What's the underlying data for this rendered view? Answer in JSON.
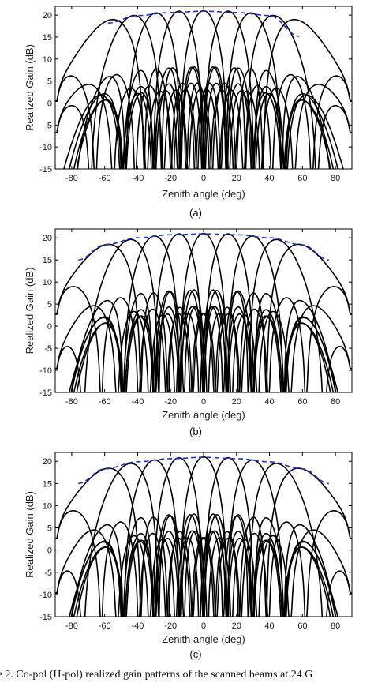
{
  "caption": "re 2. Co-pol (H-pol) realized gain patterns of the scanned beams at 24 G",
  "chart_data": [
    {
      "type": "line",
      "sublabel": "(a)",
      "xlabel": "Zenith angle (deg)",
      "ylabel": "Realized Gain (dB)",
      "xlim": [
        -90,
        90
      ],
      "ylim": [
        -15,
        22
      ],
      "xticks": [
        -80,
        -60,
        -40,
        -20,
        0,
        20,
        40,
        60,
        80
      ],
      "yticks": [
        -15,
        -10,
        -5,
        0,
        5,
        10,
        15,
        20
      ],
      "xtick_labels": [
        "-80",
        "-60",
        "-40",
        "-20",
        "0",
        "20",
        "40",
        "60",
        "80"
      ],
      "ytick_labels": [
        "-15",
        "-10",
        "-5",
        "0",
        "5",
        "10",
        "15",
        "20"
      ],
      "beam_color": "#000000",
      "envelope_color": "#1f2fcf",
      "beam_peak_angles": [
        -57,
        -43,
        -29,
        -15,
        0,
        15,
        29,
        43,
        57
      ],
      "beam_peak_gains": [
        18.9,
        19.9,
        20.5,
        20.9,
        21.0,
        20.9,
        20.5,
        19.9,
        18.9
      ],
      "envelope": {
        "x": [
          -58,
          -40,
          -20,
          0,
          20,
          40,
          58
        ],
        "y": [
          18.2,
          19.9,
          20.6,
          20.9,
          20.6,
          19.9,
          15.2
        ]
      }
    },
    {
      "type": "line",
      "sublabel": "(b)",
      "xlabel": "Zenith angle (deg)",
      "ylabel": "Realized Gain (dB)",
      "xlim": [
        -90,
        90
      ],
      "ylim": [
        -15,
        22
      ],
      "xticks": [
        -80,
        -60,
        -40,
        -20,
        0,
        20,
        40,
        60,
        80
      ],
      "yticks": [
        -15,
        -10,
        -5,
        0,
        5,
        10,
        15,
        20
      ],
      "xtick_labels": [
        "-80",
        "-60",
        "-40",
        "-20",
        "0",
        "20",
        "40",
        "60",
        "80"
      ],
      "ytick_labels": [
        "-15",
        "-10",
        "-5",
        "0",
        "5",
        "10",
        "15",
        "20"
      ],
      "beam_color": "#000000",
      "envelope_color": "#1f2fcf",
      "beam_peak_angles": [
        -60,
        -45,
        -30,
        -15,
        0,
        15,
        30,
        45,
        60
      ],
      "beam_peak_gains": [
        18.4,
        19.6,
        20.4,
        20.9,
        21.0,
        20.9,
        20.4,
        19.6,
        18.4
      ],
      "envelope": {
        "x": [
          -76,
          -60,
          -40,
          -20,
          0,
          20,
          40,
          60,
          76
        ],
        "y": [
          15.0,
          18.4,
          20.0,
          20.7,
          20.9,
          20.7,
          20.0,
          18.4,
          15.0
        ]
      }
    },
    {
      "type": "line",
      "sublabel": "(c)",
      "xlabel": "Zenith angle (deg)",
      "ylabel": "Realized Gain (dB)",
      "xlim": [
        -90,
        90
      ],
      "ylim": [
        -15,
        22
      ],
      "xticks": [
        -80,
        -60,
        -40,
        -20,
        0,
        20,
        40,
        60,
        80
      ],
      "yticks": [
        -15,
        -10,
        -5,
        0,
        5,
        10,
        15,
        20
      ],
      "xtick_labels": [
        "-80",
        "-60",
        "-40",
        "-20",
        "0",
        "20",
        "40",
        "60",
        "80"
      ],
      "ytick_labels": [
        "-15",
        "-10",
        "-5",
        "0",
        "5",
        "10",
        "15",
        "20"
      ],
      "beam_color": "#000000",
      "envelope_color": "#1f2fcf",
      "beam_peak_angles": [
        -60,
        -45,
        -30,
        -15,
        0,
        15,
        30,
        45,
        60
      ],
      "beam_peak_gains": [
        18.3,
        19.5,
        20.3,
        20.8,
        21.0,
        20.8,
        20.3,
        19.5,
        18.3
      ],
      "envelope": {
        "x": [
          -76,
          -60,
          -40,
          -20,
          0,
          20,
          40,
          60,
          76
        ],
        "y": [
          15.0,
          18.3,
          19.9,
          20.6,
          20.9,
          20.6,
          19.9,
          18.3,
          15.0
        ]
      }
    }
  ]
}
